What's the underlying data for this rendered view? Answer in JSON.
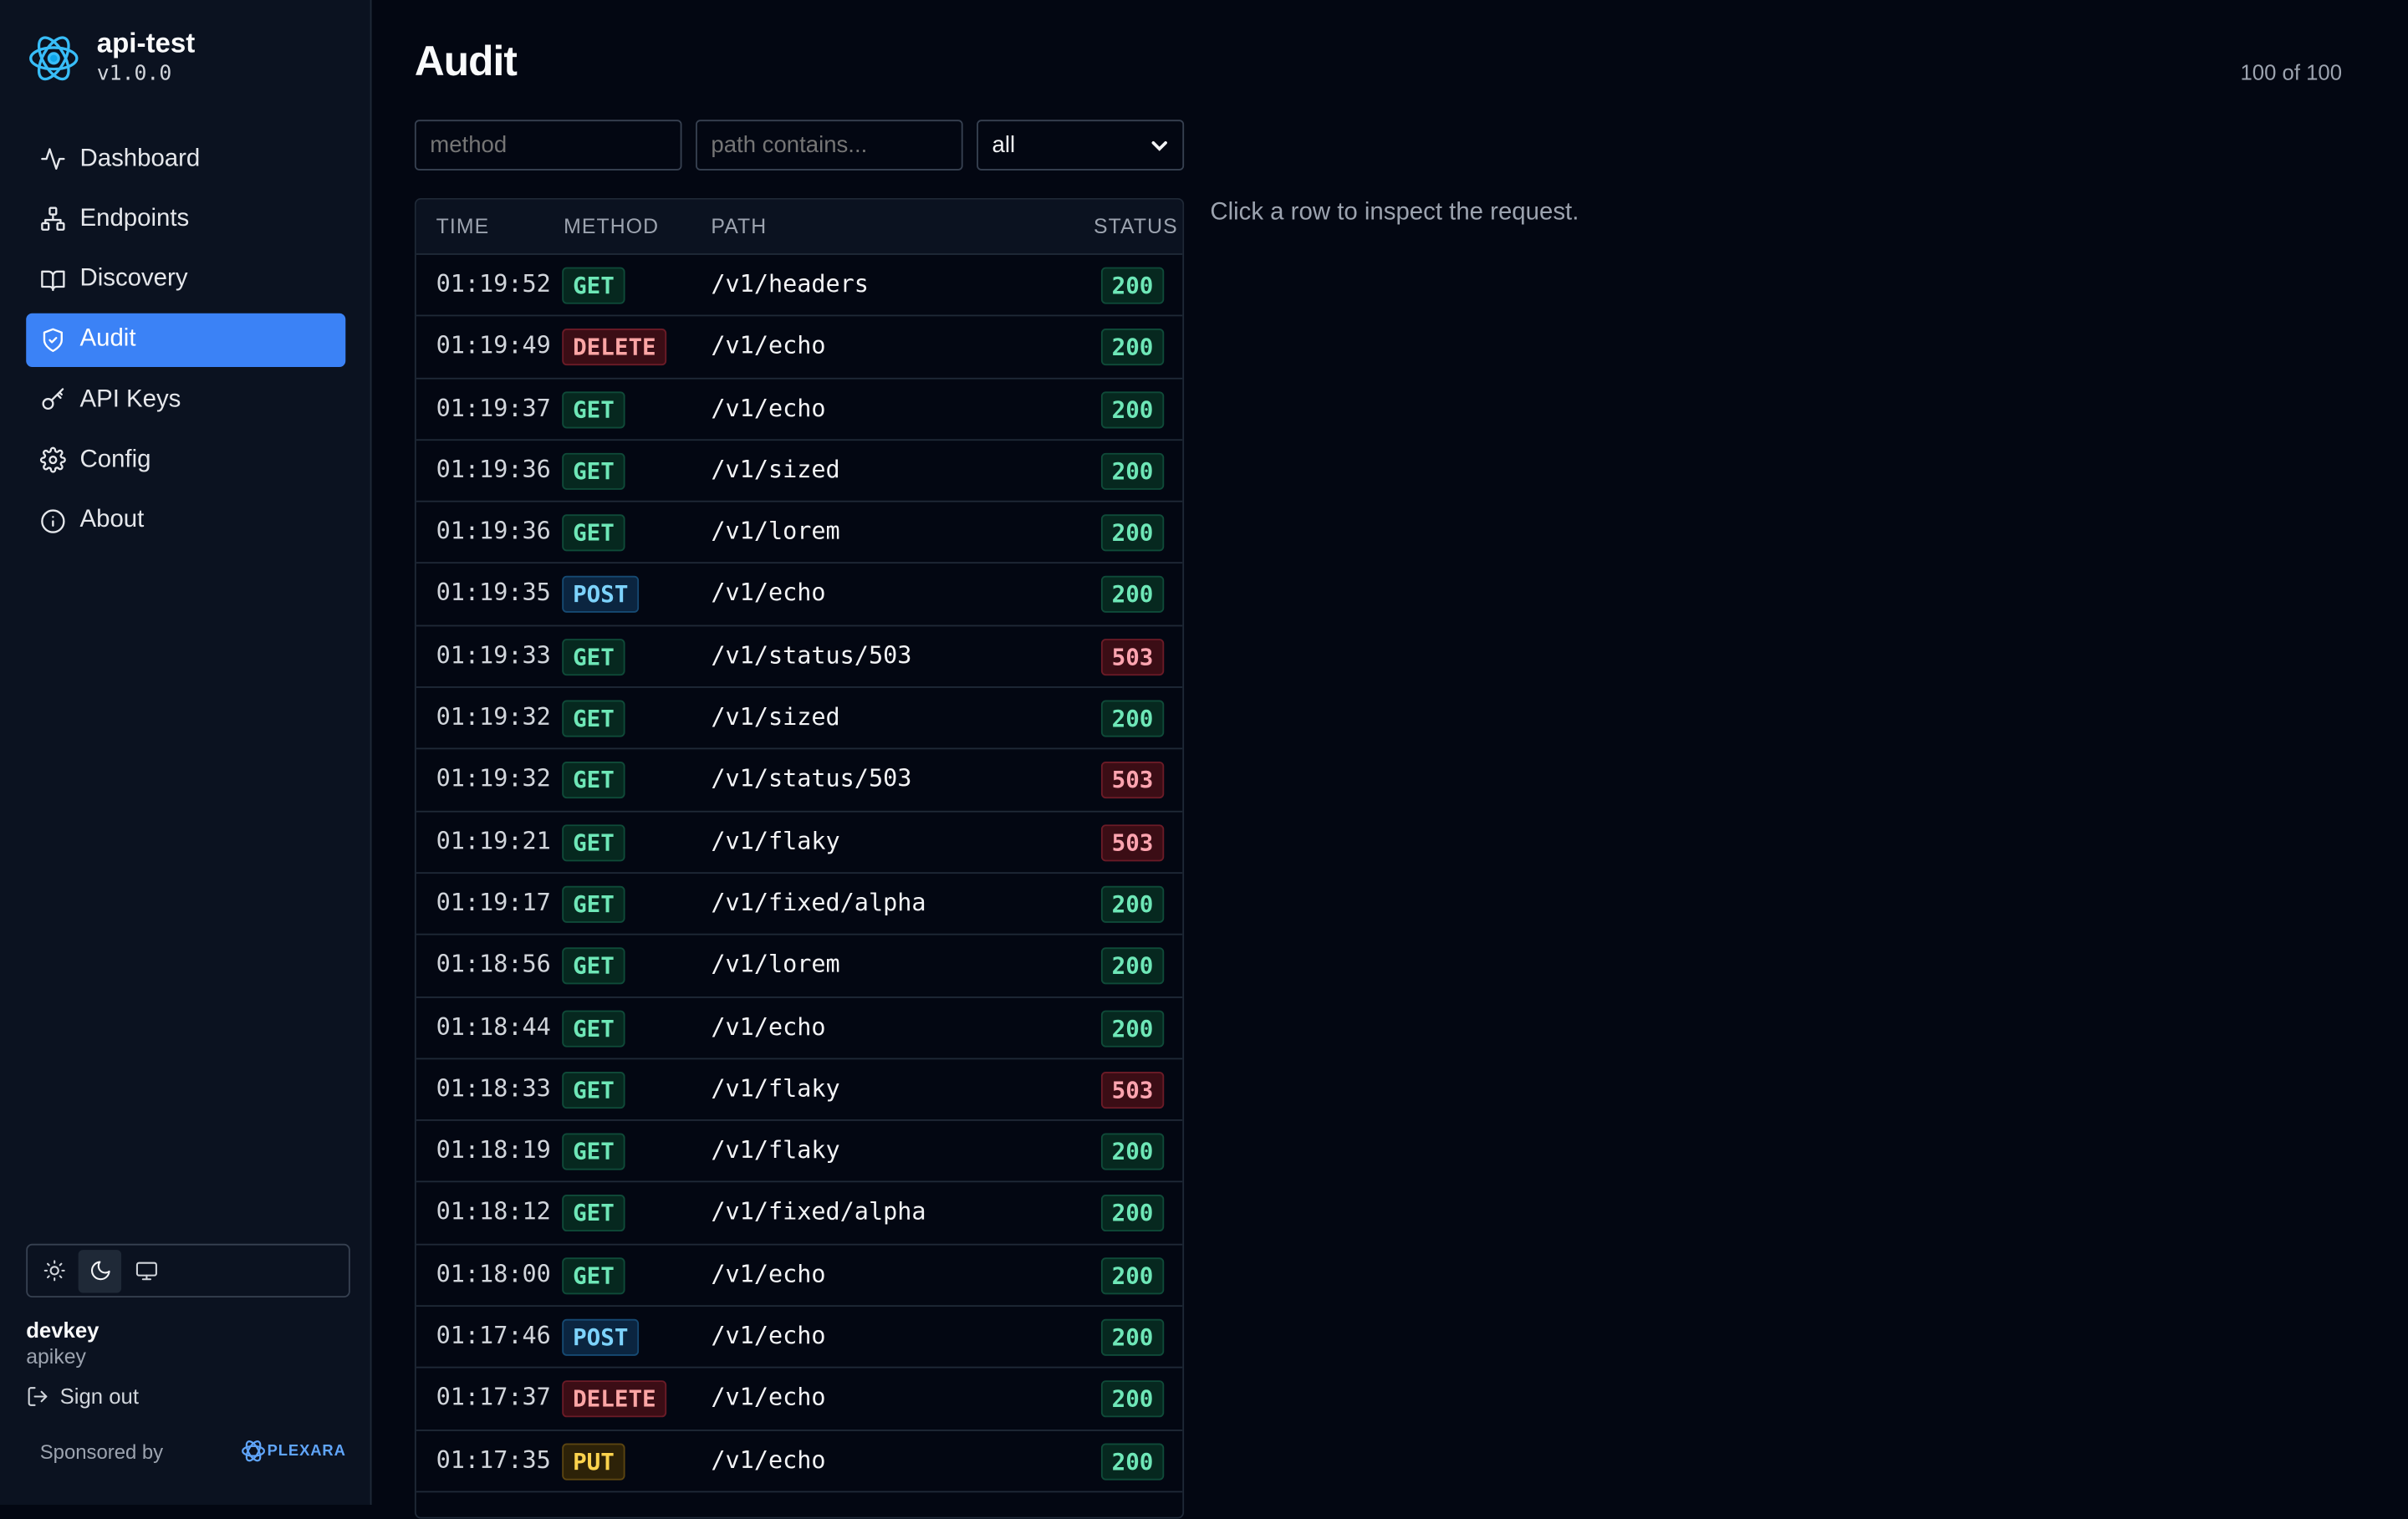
{
  "app": {
    "name": "api-test",
    "version": "v1.0.0"
  },
  "nav": {
    "items": [
      {
        "label": "Dashboard",
        "icon": "activity-icon"
      },
      {
        "label": "Endpoints",
        "icon": "network-icon"
      },
      {
        "label": "Discovery",
        "icon": "book-icon"
      },
      {
        "label": "Audit",
        "icon": "shield-icon",
        "active": true
      },
      {
        "label": "API Keys",
        "icon": "key-icon"
      },
      {
        "label": "Config",
        "icon": "gear-icon"
      },
      {
        "label": "About",
        "icon": "info-icon"
      }
    ]
  },
  "theme": {
    "options": [
      "light",
      "dark",
      "system"
    ],
    "selected": "dark"
  },
  "user": {
    "name": "devkey",
    "role": "apikey",
    "signout_label": "Sign out"
  },
  "sponsor": {
    "label": "Sponsored by",
    "brand": "PLEXARA"
  },
  "page": {
    "title": "Audit",
    "count": "100 of 100",
    "inspect_hint": "Click a row to inspect the request."
  },
  "filters": {
    "method_placeholder": "method",
    "path_placeholder": "path contains...",
    "status_selected": "all"
  },
  "table": {
    "columns": [
      "TIME",
      "METHOD",
      "PATH",
      "STATUS"
    ],
    "rows": [
      {
        "time": "01:19:52",
        "method": "GET",
        "path": "/v1/headers",
        "status": "200"
      },
      {
        "time": "01:19:49",
        "method": "DELETE",
        "path": "/v1/echo",
        "status": "200"
      },
      {
        "time": "01:19:37",
        "method": "GET",
        "path": "/v1/echo",
        "status": "200"
      },
      {
        "time": "01:19:36",
        "method": "GET",
        "path": "/v1/sized",
        "status": "200"
      },
      {
        "time": "01:19:36",
        "method": "GET",
        "path": "/v1/lorem",
        "status": "200"
      },
      {
        "time": "01:19:35",
        "method": "POST",
        "path": "/v1/echo",
        "status": "200"
      },
      {
        "time": "01:19:33",
        "method": "GET",
        "path": "/v1/status/503",
        "status": "503"
      },
      {
        "time": "01:19:32",
        "method": "GET",
        "path": "/v1/sized",
        "status": "200"
      },
      {
        "time": "01:19:32",
        "method": "GET",
        "path": "/v1/status/503",
        "status": "503"
      },
      {
        "time": "01:19:21",
        "method": "GET",
        "path": "/v1/flaky",
        "status": "503"
      },
      {
        "time": "01:19:17",
        "method": "GET",
        "path": "/v1/fixed/alpha",
        "status": "200"
      },
      {
        "time": "01:18:56",
        "method": "GET",
        "path": "/v1/lorem",
        "status": "200"
      },
      {
        "time": "01:18:44",
        "method": "GET",
        "path": "/v1/echo",
        "status": "200"
      },
      {
        "time": "01:18:33",
        "method": "GET",
        "path": "/v1/flaky",
        "status": "503"
      },
      {
        "time": "01:18:19",
        "method": "GET",
        "path": "/v1/flaky",
        "status": "200"
      },
      {
        "time": "01:18:12",
        "method": "GET",
        "path": "/v1/fixed/alpha",
        "status": "200"
      },
      {
        "time": "01:18:00",
        "method": "GET",
        "path": "/v1/echo",
        "status": "200"
      },
      {
        "time": "01:17:46",
        "method": "POST",
        "path": "/v1/echo",
        "status": "200"
      },
      {
        "time": "01:17:37",
        "method": "DELETE",
        "path": "/v1/echo",
        "status": "200"
      },
      {
        "time": "01:17:35",
        "method": "PUT",
        "path": "/v1/echo",
        "status": "200"
      }
    ]
  }
}
